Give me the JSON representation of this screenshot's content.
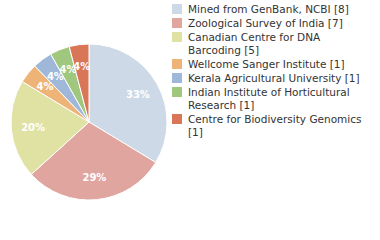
{
  "chart_data": {
    "type": "pie",
    "categories": [
      "Mined from GenBank, NCBI [8]",
      "Zoological Survey of India [7]",
      "Canadian Centre for DNA Barcoding [5]",
      "Wellcome Sanger Institute [1]",
      "Kerala Agricultural University [1]",
      "Indian Institute of Horticultural Research [1]",
      "Centre for Biodiversity Genomics [1]"
    ],
    "values": [
      33,
      29,
      20,
      4,
      4,
      4,
      4
    ],
    "value_labels": [
      "33%",
      "29%",
      "20%",
      "4%",
      "4%",
      "4%",
      "4%"
    ],
    "colors": [
      "#cdd9e6",
      "#e0a59f",
      "#dfe2a3",
      "#eeb477",
      "#9fb8da",
      "#a0c77e",
      "#da7658"
    ],
    "data_labels": true,
    "legend": "right"
  }
}
